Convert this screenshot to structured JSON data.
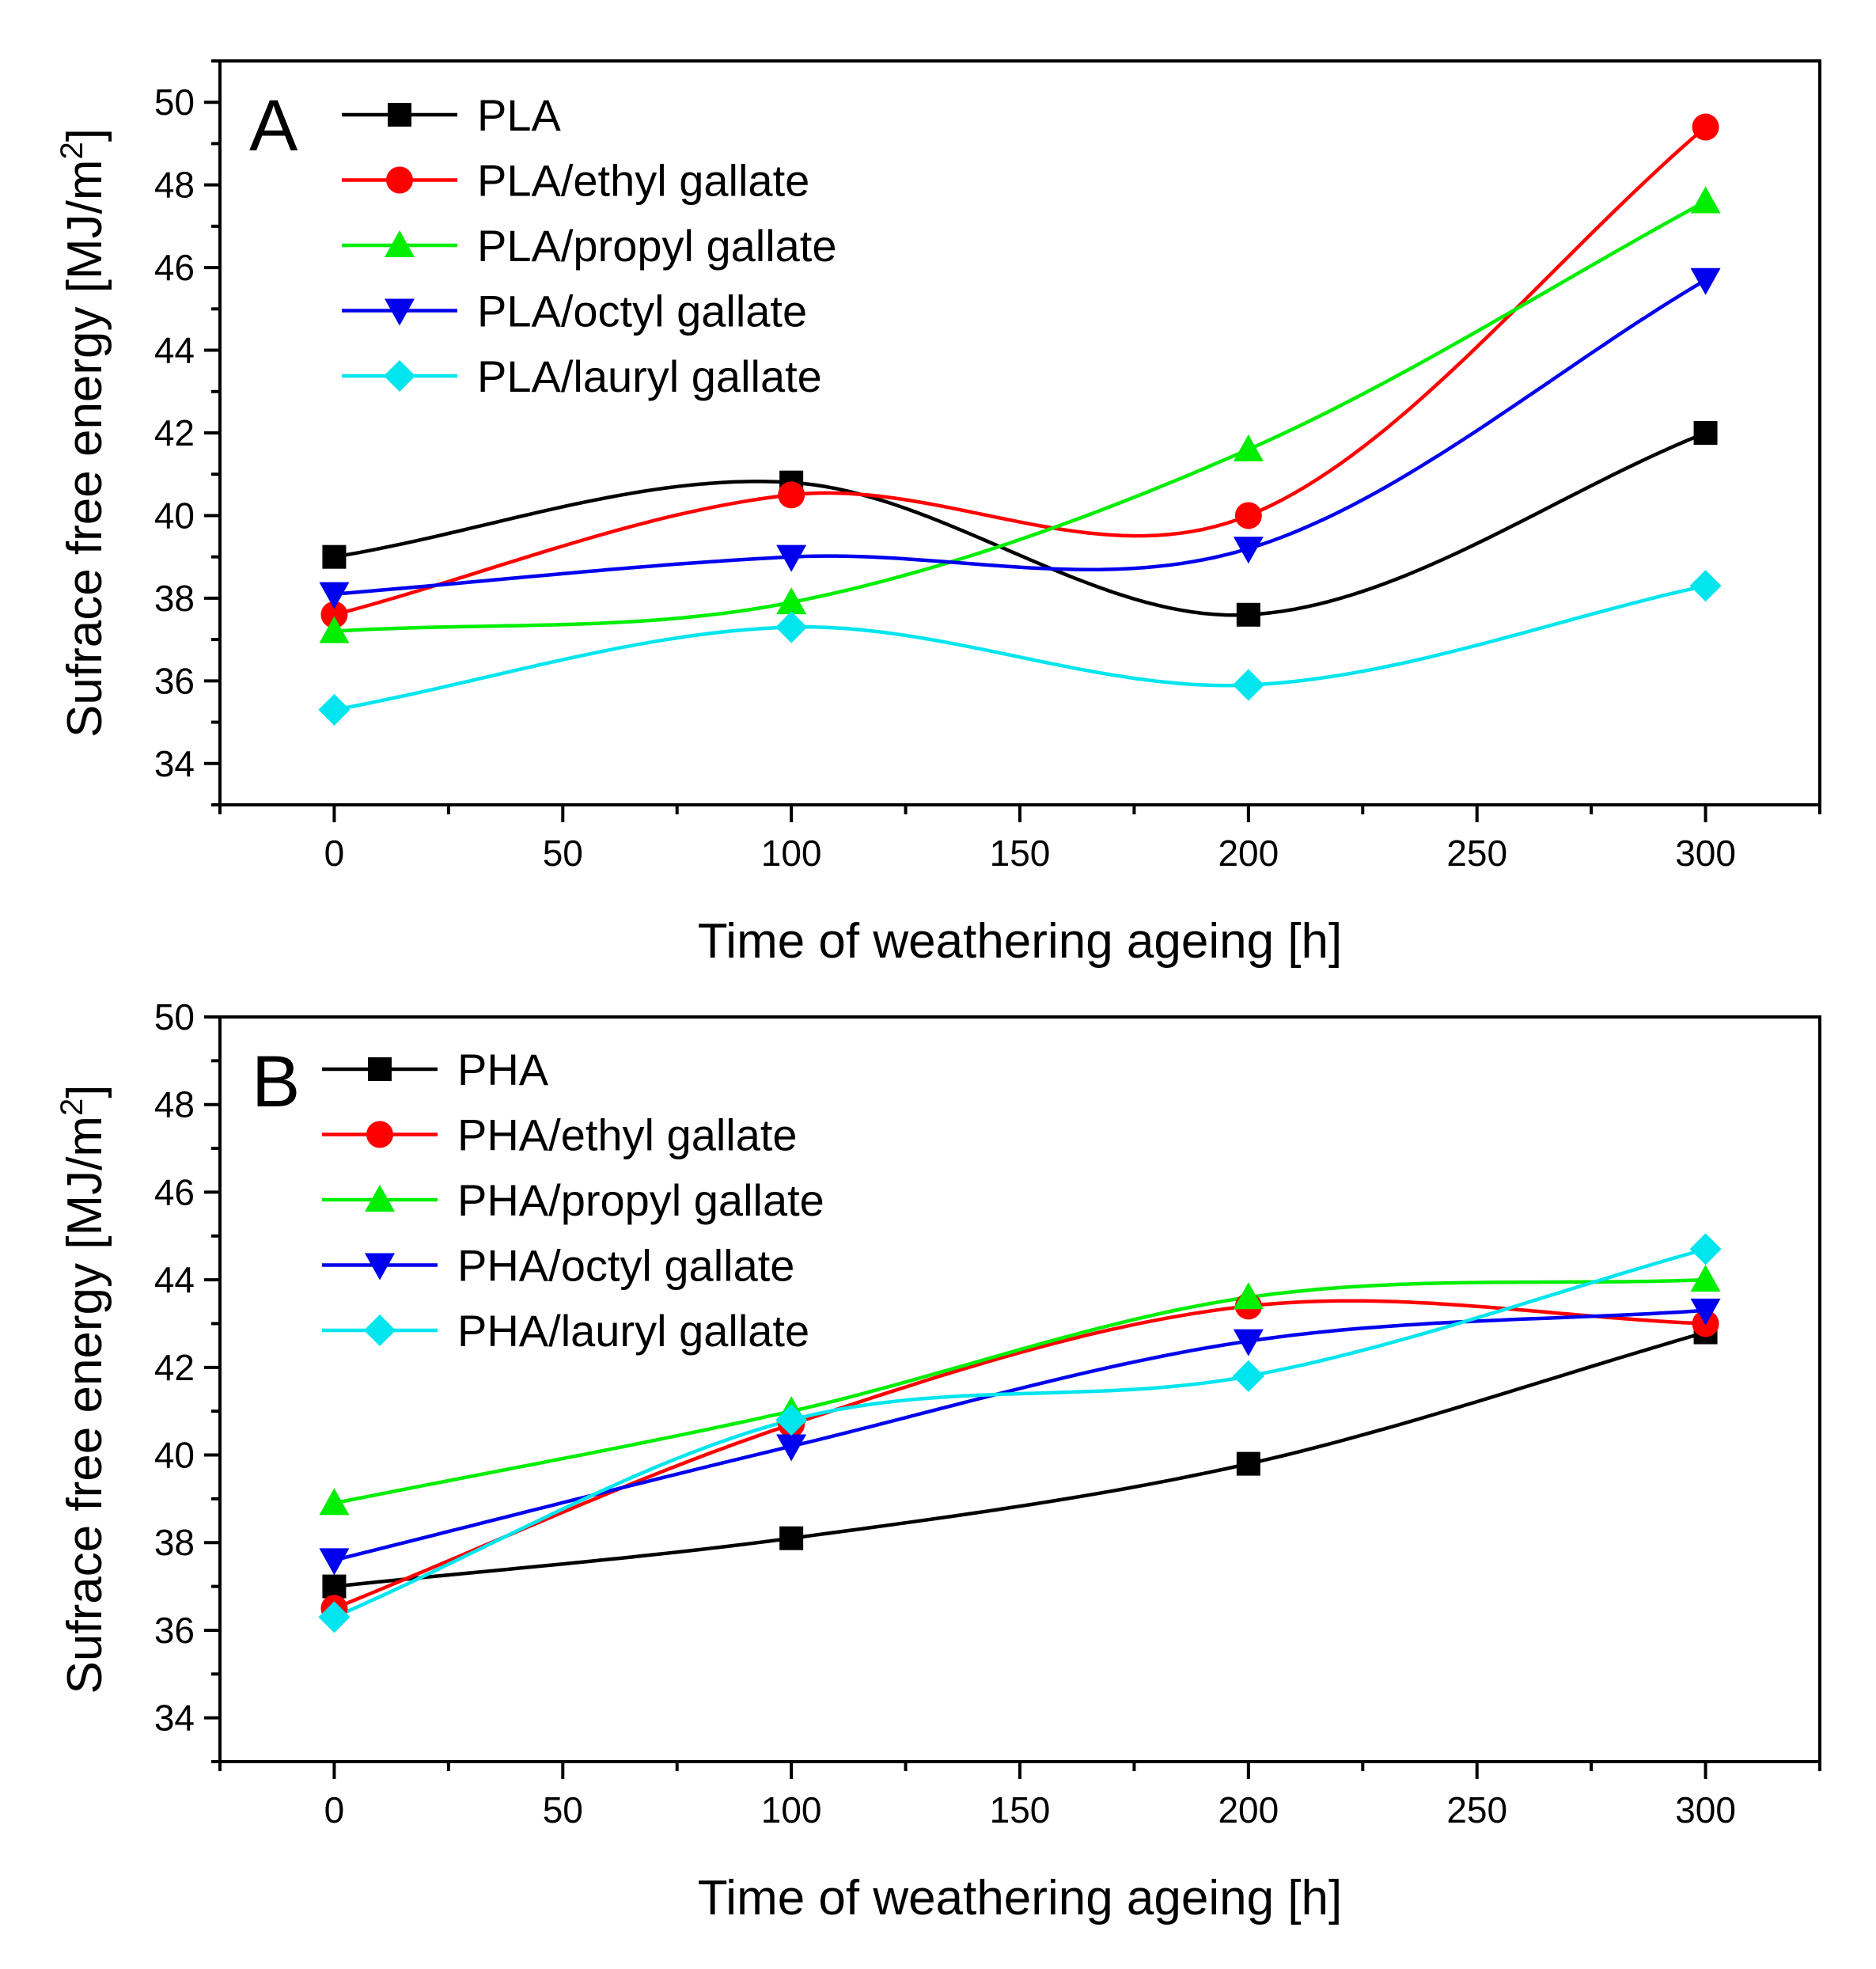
{
  "chart_data": [
    {
      "type": "line",
      "panel_label": "A",
      "xlabel": "Time of weathering ageing [h]",
      "ylabel_main": "Sufrace free energy [MJ/m",
      "ylabel_sup": "2",
      "ylabel_end": "]",
      "xlim": [
        -25,
        325
      ],
      "ylim": [
        33,
        51
      ],
      "xticks": [
        0,
        50,
        100,
        150,
        200,
        250,
        300
      ],
      "yticks": [
        34,
        36,
        38,
        40,
        42,
        44,
        46,
        48,
        50
      ],
      "x": [
        0,
        100,
        200,
        300
      ],
      "legend_position": "top-left",
      "series": [
        {
          "name": "PLA",
          "color": "#000000",
          "marker": "square",
          "values": [
            39.0,
            40.8,
            37.6,
            42.0
          ]
        },
        {
          "name": "PLA/ethyl gallate",
          "color": "#ff0000",
          "marker": "circle",
          "values": [
            37.6,
            40.5,
            40.0,
            49.4
          ]
        },
        {
          "name": "PLA/propyl gallate",
          "color": "#00ee00",
          "marker": "triangle-up",
          "values": [
            37.2,
            37.9,
            41.6,
            47.6
          ]
        },
        {
          "name": "PLA/octyl gallate",
          "color": "#0000ee",
          "marker": "triangle-down",
          "values": [
            38.1,
            39.0,
            39.2,
            45.7
          ]
        },
        {
          "name": "PLA/lauryl gallate",
          "color": "#00e5ee",
          "marker": "diamond",
          "values": [
            35.3,
            37.3,
            35.9,
            38.3
          ]
        }
      ]
    },
    {
      "type": "line",
      "panel_label": "B",
      "xlabel": "Time of weathering ageing [h]",
      "ylabel_main": "Sufrace free energy [MJ/m",
      "ylabel_sup": "2",
      "ylabel_end": "]",
      "xlim": [
        -25,
        325
      ],
      "ylim": [
        33,
        50
      ],
      "xticks": [
        0,
        50,
        100,
        150,
        200,
        250,
        300
      ],
      "yticks": [
        34,
        36,
        38,
        40,
        42,
        44,
        46,
        48,
        50
      ],
      "x": [
        0,
        100,
        200,
        300
      ],
      "legend_position": "top-left",
      "series": [
        {
          "name": "PHA",
          "color": "#000000",
          "marker": "square",
          "values": [
            37.0,
            38.1,
            39.8,
            42.8
          ]
        },
        {
          "name": "PHA/ethyl gallate",
          "color": "#ff0000",
          "marker": "circle",
          "values": [
            36.5,
            40.7,
            43.4,
            43.0
          ]
        },
        {
          "name": "PHA/propyl gallate",
          "color": "#00ee00",
          "marker": "triangle-up",
          "values": [
            38.9,
            41.0,
            43.6,
            44.0
          ]
        },
        {
          "name": "PHA/octyl gallate",
          "color": "#0000ee",
          "marker": "triangle-down",
          "values": [
            37.6,
            40.2,
            42.6,
            43.3
          ]
        },
        {
          "name": "PHA/lauryl gallate",
          "color": "#00e5ee",
          "marker": "diamond",
          "values": [
            36.3,
            40.8,
            41.8,
            44.7
          ]
        }
      ]
    }
  ]
}
